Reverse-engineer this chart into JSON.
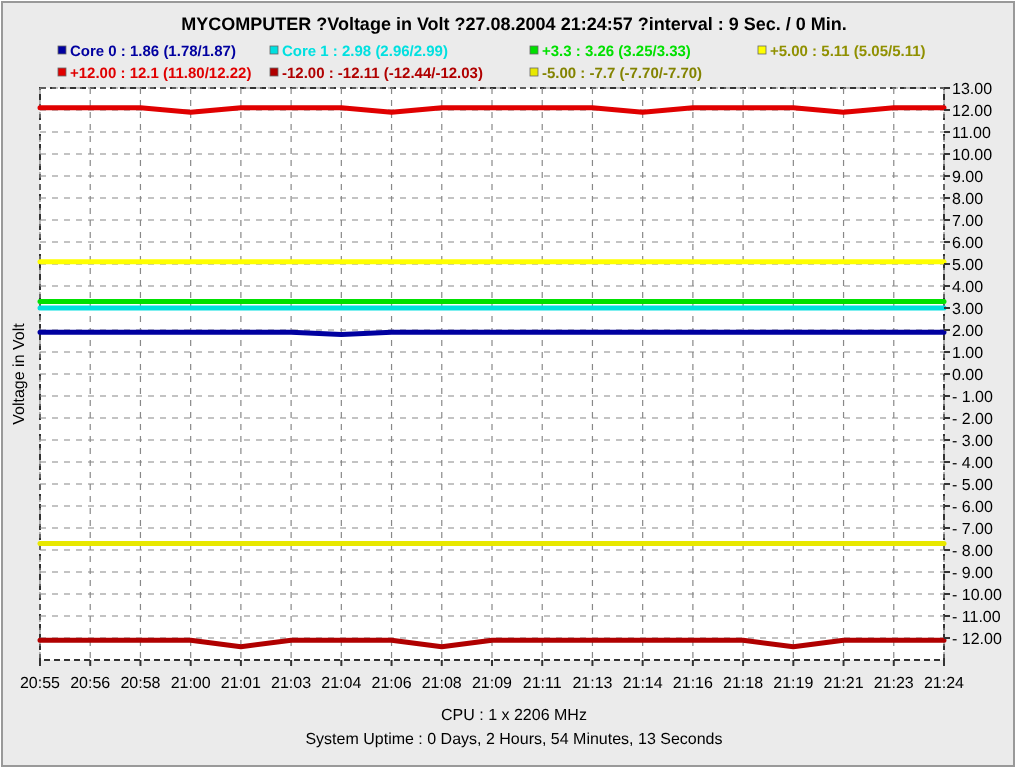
{
  "chart_data": {
    "type": "line",
    "title": "MYCOMPUTER ?Voltage in Volt ?27.08.2004 21:24:57 ?interval : 9 Sec. / 0 Min.",
    "xlabel": "CPU : 1 x 2206 MHz",
    "ylabel": "Voltage in Volt",
    "annotations": [
      "System Uptime :  0 Days, 2 Hours, 54 Minutes, 13 Seconds"
    ],
    "categories": [
      "20:55",
      "20:56",
      "20:58",
      "21:00",
      "21:01",
      "21:03",
      "21:04",
      "21:06",
      "21:08",
      "21:09",
      "21:11",
      "21:13",
      "21:14",
      "21:16",
      "21:18",
      "21:19",
      "21:21",
      "21:23",
      "21:24"
    ],
    "ylim": [
      -13,
      13
    ],
    "yticks": [
      {
        "value": 13,
        "label": "13.00"
      },
      {
        "value": 12,
        "label": "12.00"
      },
      {
        "value": 11,
        "label": "11.00"
      },
      {
        "value": 10,
        "label": "10.00"
      },
      {
        "value": 9,
        "label": "9.00"
      },
      {
        "value": 8,
        "label": "8.00"
      },
      {
        "value": 7,
        "label": "7.00"
      },
      {
        "value": 6,
        "label": "6.00"
      },
      {
        "value": 5,
        "label": "5.00"
      },
      {
        "value": 4,
        "label": "4.00"
      },
      {
        "value": 3,
        "label": "3.00"
      },
      {
        "value": 2,
        "label": "2.00"
      },
      {
        "value": 1,
        "label": "1.00"
      },
      {
        "value": 0,
        "label": "0.00"
      },
      {
        "value": -1,
        "label": "- 1.00"
      },
      {
        "value": -2,
        "label": "- 2.00"
      },
      {
        "value": -3,
        "label": "- 3.00"
      },
      {
        "value": -4,
        "label": "- 4.00"
      },
      {
        "value": -5,
        "label": "- 5.00"
      },
      {
        "value": -6,
        "label": "- 6.00"
      },
      {
        "value": -7,
        "label": "- 7.00"
      },
      {
        "value": -8,
        "label": "- 8.00"
      },
      {
        "value": -9,
        "label": "- 9.00"
      },
      {
        "value": -10,
        "label": "- 10.00"
      },
      {
        "value": -11,
        "label": "- 11.00"
      },
      {
        "value": -12,
        "label": "- 12.00"
      }
    ],
    "grid": true,
    "legend": "top",
    "marker": "none",
    "line_style": "solid",
    "series": [
      {
        "name": "Core 0 : 1.86 (1.78/1.87)",
        "color": "#0000a0",
        "values": [
          1.9,
          1.9,
          1.9,
          1.9,
          1.9,
          1.9,
          1.8,
          1.9,
          1.9,
          1.9,
          1.9,
          1.9,
          1.9,
          1.9,
          1.9,
          1.9,
          1.9,
          1.9,
          1.9
        ]
      },
      {
        "name": "Core 1 : 2.98 (2.96/2.99)",
        "color": "#00e0e0",
        "values": [
          3.0,
          3.0,
          3.0,
          3.0,
          3.0,
          3.0,
          3.0,
          3.0,
          3.0,
          3.0,
          3.0,
          3.0,
          3.0,
          3.0,
          3.0,
          3.0,
          3.0,
          3.0,
          3.0
        ]
      },
      {
        "name": "+3.3 : 3.26 (3.25/3.33)",
        "color": "#00e000",
        "values": [
          3.3,
          3.3,
          3.3,
          3.3,
          3.3,
          3.3,
          3.3,
          3.3,
          3.3,
          3.3,
          3.3,
          3.3,
          3.3,
          3.3,
          3.3,
          3.3,
          3.3,
          3.3,
          3.3
        ]
      },
      {
        "name": "+5.00 : 5.11 (5.05/5.11)",
        "color": "#ffff00",
        "values": [
          5.1,
          5.1,
          5.1,
          5.1,
          5.1,
          5.1,
          5.1,
          5.1,
          5.1,
          5.1,
          5.1,
          5.1,
          5.1,
          5.1,
          5.1,
          5.1,
          5.1,
          5.1,
          5.1
        ]
      },
      {
        "name": "+12.00 : 12.1 (11.80/12.22)",
        "color": "#e00000",
        "values": [
          12.1,
          12.1,
          12.1,
          11.9,
          12.1,
          12.1,
          12.1,
          11.9,
          12.1,
          12.1,
          12.1,
          12.1,
          11.9,
          12.1,
          12.1,
          12.1,
          11.9,
          12.1,
          12.1
        ]
      },
      {
        "name": "-12.00 : -12.11 (-12.44/-12.03)",
        "color": "#b00000",
        "values": [
          -12.1,
          -12.1,
          -12.1,
          -12.1,
          -12.4,
          -12.1,
          -12.1,
          -12.1,
          -12.4,
          -12.1,
          -12.1,
          -12.1,
          -12.1,
          -12.1,
          -12.1,
          -12.4,
          -12.1,
          -12.1,
          -12.1
        ]
      },
      {
        "name": "-5.00 : -7.7 (-7.70/-7.70)",
        "color": "#e8e800",
        "values": [
          -7.7,
          -7.7,
          -7.7,
          -7.7,
          -7.7,
          -7.7,
          -7.7,
          -7.7,
          -7.7,
          -7.7,
          -7.7,
          -7.7,
          -7.7,
          -7.7,
          -7.7,
          -7.7,
          -7.7,
          -7.7,
          -7.7
        ]
      }
    ]
  }
}
